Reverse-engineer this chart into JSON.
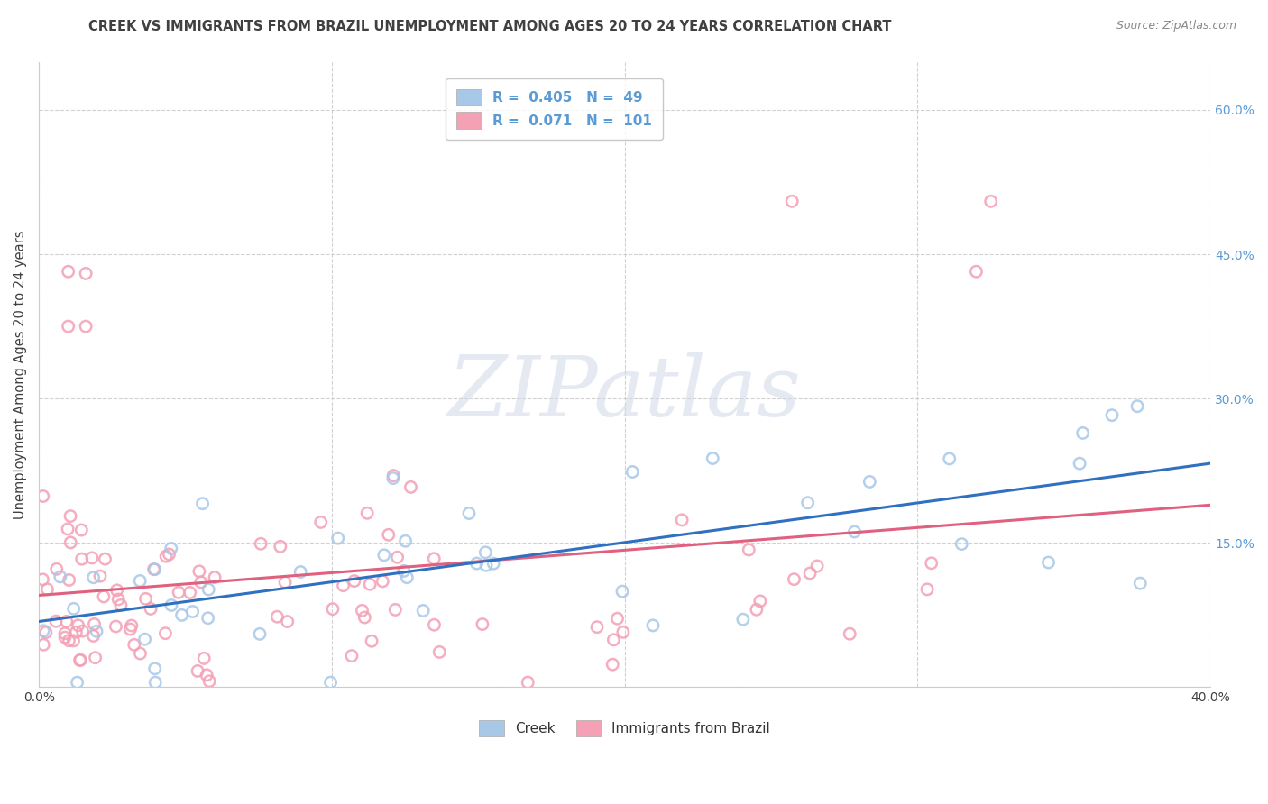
{
  "title": "CREEK VS IMMIGRANTS FROM BRAZIL UNEMPLOYMENT AMONG AGES 20 TO 24 YEARS CORRELATION CHART",
  "source": "Source: ZipAtlas.com",
  "ylabel": "Unemployment Among Ages 20 to 24 years",
  "xlim": [
    0.0,
    0.4
  ],
  "ylim": [
    0.0,
    0.65
  ],
  "xtick_vals": [
    0.0,
    0.1,
    0.2,
    0.3,
    0.4
  ],
  "xticklabels": [
    "0.0%",
    "",
    "",
    "",
    "40.0%"
  ],
  "ytick_vals": [
    0.0,
    0.15,
    0.3,
    0.45,
    0.6
  ],
  "yticklabels_right": [
    "",
    "15.0%",
    "30.0%",
    "45.0%",
    "60.0%"
  ],
  "creek_color": "#a8c8e8",
  "brazil_color": "#f4a0b5",
  "creek_line_color": "#3070c0",
  "brazil_line_color": "#e06080",
  "watermark_text": "ZIPatlas",
  "background_color": "#ffffff",
  "grid_color": "#cccccc",
  "title_color": "#404040",
  "tick_label_color": "#5b9bd5",
  "legend_label_color": "#5b9bd5"
}
